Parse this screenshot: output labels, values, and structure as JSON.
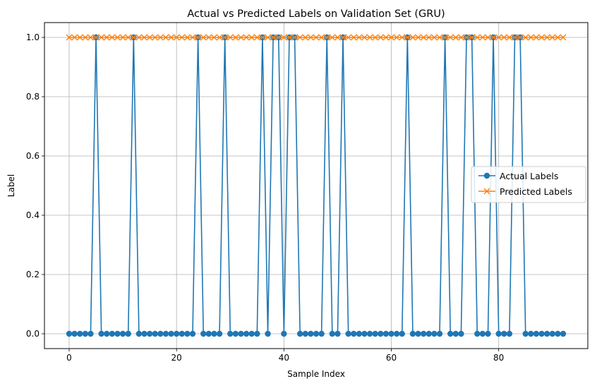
{
  "chart_data": {
    "type": "line",
    "title": "Actual vs Predicted Labels on Validation Set (GRU)",
    "xlabel": "Sample Index",
    "ylabel": "Label",
    "xlim": [
      -4.6,
      96.6
    ],
    "ylim": [
      -0.05,
      1.05
    ],
    "xticks": [
      0,
      20,
      40,
      60,
      80
    ],
    "yticks": [
      0.0,
      0.2,
      0.4,
      0.6,
      0.8,
      1.0
    ],
    "xtick_labels": [
      "0",
      "20",
      "40",
      "60",
      "80"
    ],
    "ytick_labels": [
      "0.0",
      "0.2",
      "0.4",
      "0.6",
      "0.8",
      "1.0"
    ],
    "grid": true,
    "legend_position": "center-right",
    "series": [
      {
        "name": "Actual Labels",
        "color": "#1f77b4",
        "marker": "circle",
        "values": [
          0,
          0,
          0,
          0,
          0,
          1,
          0,
          0,
          0,
          0,
          0,
          0,
          1,
          0,
          0,
          0,
          0,
          0,
          0,
          0,
          0,
          0,
          0,
          0,
          1,
          0,
          0,
          0,
          0,
          1,
          0,
          0,
          0,
          0,
          0,
          0,
          1,
          0,
          1,
          1,
          0,
          1,
          1,
          0,
          0,
          0,
          0,
          0,
          1,
          0,
          0,
          1,
          0,
          0,
          0,
          0,
          0,
          0,
          0,
          0,
          0,
          0,
          0,
          1,
          0,
          0,
          0,
          0,
          0,
          0,
          1,
          0,
          0,
          0,
          1,
          1,
          0,
          0,
          0,
          1,
          0,
          0,
          0,
          1,
          1,
          0,
          0,
          0,
          0,
          0,
          0,
          0,
          0
        ]
      },
      {
        "name": "Predicted Labels",
        "color": "#ff7f0e",
        "marker": "x",
        "values": [
          1,
          1,
          1,
          1,
          1,
          1,
          1,
          1,
          1,
          1,
          1,
          1,
          1,
          1,
          1,
          1,
          1,
          1,
          1,
          1,
          1,
          1,
          1,
          1,
          1,
          1,
          1,
          1,
          1,
          1,
          1,
          1,
          1,
          1,
          1,
          1,
          1,
          1,
          1,
          1,
          1,
          1,
          1,
          1,
          1,
          1,
          1,
          1,
          1,
          1,
          1,
          1,
          1,
          1,
          1,
          1,
          1,
          1,
          1,
          1,
          1,
          1,
          1,
          1,
          1,
          1,
          1,
          1,
          1,
          1,
          1,
          1,
          1,
          1,
          1,
          1,
          1,
          1,
          1,
          1,
          1,
          1,
          1,
          1,
          1,
          1,
          1,
          1,
          1,
          1,
          1,
          1,
          1
        ]
      }
    ]
  }
}
